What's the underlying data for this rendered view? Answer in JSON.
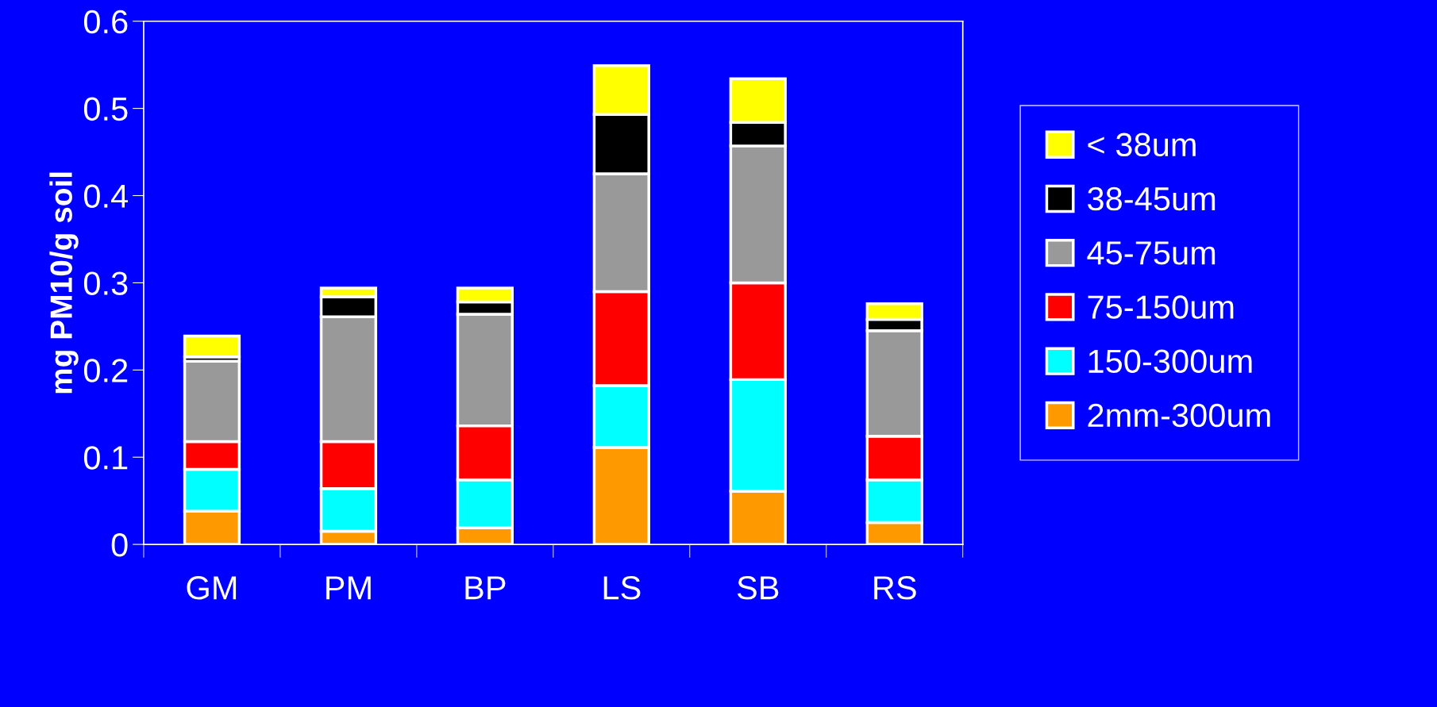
{
  "chart_data": {
    "type": "bar",
    "stacked": true,
    "ylabel": "mg PM10/g soil",
    "categories": [
      "GM",
      "PM",
      "BP",
      "LS",
      "SB",
      "RS"
    ],
    "series": [
      {
        "name": "2mm-300um",
        "color": "#ff9900",
        "values": [
          0.038,
          0.015,
          0.019,
          0.111,
          0.061,
          0.025
        ]
      },
      {
        "name": "150-300um",
        "color": "#00ffff",
        "values": [
          0.048,
          0.049,
          0.055,
          0.071,
          0.128,
          0.049
        ]
      },
      {
        "name": "75-150um",
        "color": "#ff0000",
        "values": [
          0.032,
          0.054,
          0.062,
          0.108,
          0.111,
          0.05
        ]
      },
      {
        "name": "45-75um",
        "color": "#999999",
        "values": [
          0.092,
          0.143,
          0.128,
          0.135,
          0.157,
          0.121
        ]
      },
      {
        "name": "38-45um",
        "color": "#000000",
        "values": [
          0.005,
          0.023,
          0.014,
          0.068,
          0.027,
          0.013
        ]
      },
      {
        "name": "< 38um",
        "color": "#ffff00",
        "values": [
          0.024,
          0.01,
          0.016,
          0.056,
          0.05,
          0.018
        ]
      }
    ],
    "ylim": [
      0,
      0.6
    ],
    "yticks": [
      0,
      0.1,
      0.2,
      0.3,
      0.4,
      0.5,
      0.6
    ],
    "grid": false,
    "legend": "right"
  }
}
